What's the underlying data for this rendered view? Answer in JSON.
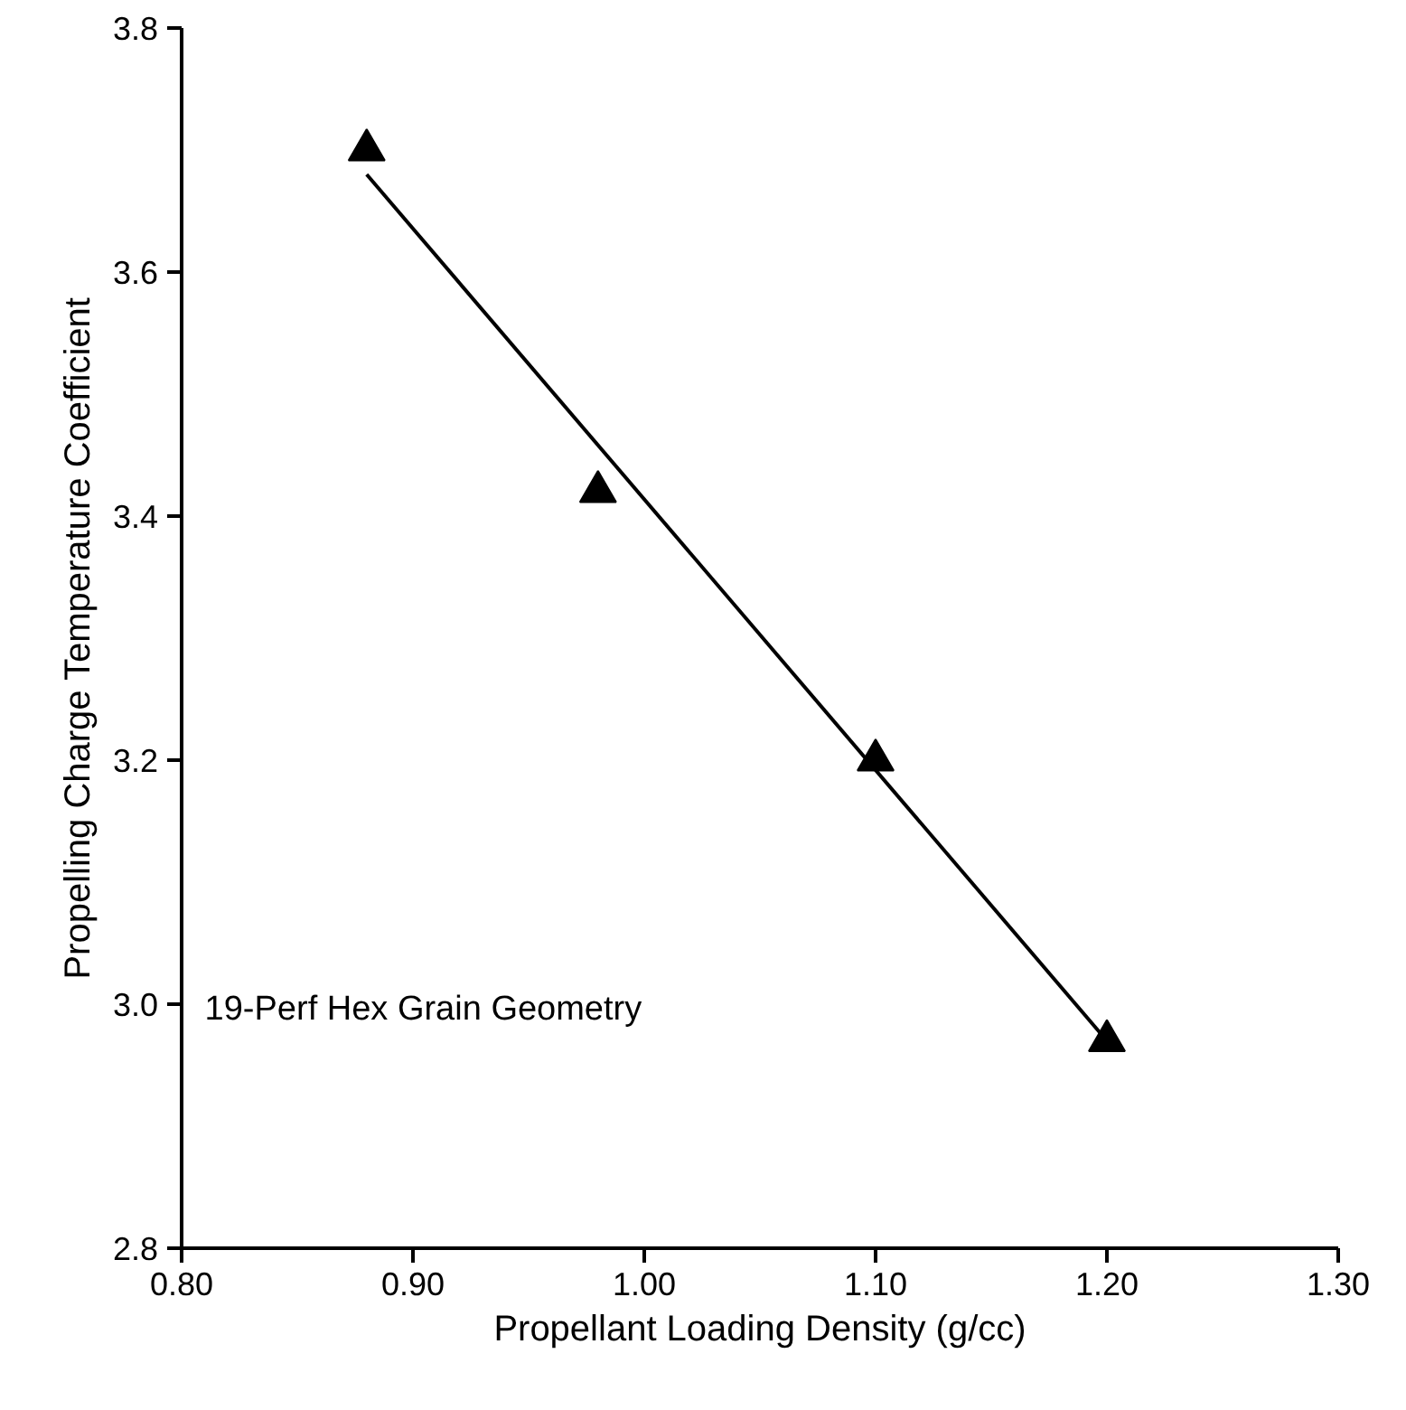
{
  "chart_data": {
    "type": "scatter",
    "xlabel": "Propellant Loading Density (g/cc)",
    "ylabel": "Propelling Charge Temperature Coefficient",
    "series": [
      {
        "color": "#000000",
        "marker": "triangle",
        "x": [
          0.88,
          0.98,
          1.1,
          1.2
        ],
        "values": [
          3.7,
          3.42,
          3.2,
          2.97
        ]
      },
      {
        "type": "line",
        "color": "#000000",
        "line_style": "solid",
        "x": [
          0.88,
          1.2
        ],
        "values": [
          3.68,
          2.97
        ]
      }
    ],
    "xlim": [
      0.8,
      1.3
    ],
    "xticks": [
      {
        "value": 0.8,
        "label": "0.80"
      },
      {
        "value": 0.9,
        "label": "0.90"
      },
      {
        "value": 1.0,
        "label": "1.00"
      },
      {
        "value": 1.1,
        "label": "1.10"
      },
      {
        "value": 1.2,
        "label": "1.20"
      },
      {
        "value": 1.3,
        "label": "1.30"
      }
    ],
    "ylim": [
      2.8,
      3.8
    ],
    "yticks": [
      {
        "value": 2.8,
        "label": "2.8"
      },
      {
        "value": 3.0,
        "label": "3.0"
      },
      {
        "value": 3.2,
        "label": "3.2"
      },
      {
        "value": 3.4,
        "label": "3.4"
      },
      {
        "value": 3.6,
        "label": "3.6"
      },
      {
        "value": 3.8,
        "label": "3.8"
      }
    ],
    "annotations": [
      "19-Perf Hex Grain Geometry"
    ],
    "grid": false
  }
}
